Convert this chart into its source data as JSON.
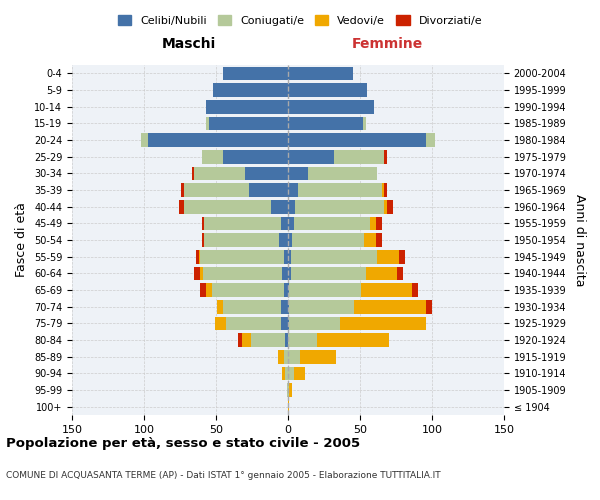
{
  "age_groups": [
    "100+",
    "95-99",
    "90-94",
    "85-89",
    "80-84",
    "75-79",
    "70-74",
    "65-69",
    "60-64",
    "55-59",
    "50-54",
    "45-49",
    "40-44",
    "35-39",
    "30-34",
    "25-29",
    "20-24",
    "15-19",
    "10-14",
    "5-9",
    "0-4"
  ],
  "birth_years": [
    "≤ 1904",
    "1905-1909",
    "1910-1914",
    "1915-1919",
    "1920-1924",
    "1925-1929",
    "1930-1934",
    "1935-1939",
    "1940-1944",
    "1945-1949",
    "1950-1954",
    "1955-1959",
    "1960-1964",
    "1965-1969",
    "1970-1974",
    "1975-1979",
    "1980-1984",
    "1985-1989",
    "1990-1994",
    "1995-1999",
    "2000-2004"
  ],
  "males": {
    "celibe": [
      0,
      0,
      0,
      0,
      2,
      5,
      5,
      3,
      4,
      3,
      6,
      5,
      12,
      27,
      30,
      45,
      97,
      55,
      57,
      52,
      45
    ],
    "coniugato": [
      0,
      1,
      2,
      3,
      24,
      38,
      40,
      50,
      55,
      58,
      52,
      53,
      60,
      45,
      35,
      15,
      5,
      2,
      0,
      0,
      0
    ],
    "vedovo": [
      0,
      0,
      2,
      4,
      6,
      8,
      4,
      4,
      2,
      1,
      0,
      0,
      0,
      0,
      0,
      0,
      0,
      0,
      0,
      0,
      0
    ],
    "divorziato": [
      0,
      0,
      0,
      0,
      3,
      0,
      0,
      4,
      4,
      2,
      2,
      2,
      4,
      2,
      2,
      0,
      0,
      0,
      0,
      0,
      0
    ]
  },
  "females": {
    "nubile": [
      0,
      0,
      0,
      0,
      0,
      1,
      1,
      1,
      2,
      2,
      3,
      4,
      5,
      7,
      14,
      32,
      96,
      52,
      60,
      55,
      45
    ],
    "coniugata": [
      0,
      1,
      4,
      8,
      20,
      35,
      45,
      50,
      52,
      60,
      50,
      53,
      62,
      58,
      48,
      35,
      6,
      2,
      0,
      0,
      0
    ],
    "vedova": [
      1,
      2,
      8,
      25,
      50,
      60,
      50,
      35,
      22,
      15,
      8,
      4,
      2,
      2,
      0,
      0,
      0,
      0,
      0,
      0,
      0
    ],
    "divorziata": [
      0,
      0,
      0,
      0,
      0,
      0,
      4,
      4,
      4,
      4,
      4,
      4,
      4,
      2,
      0,
      2,
      0,
      0,
      0,
      0,
      0
    ]
  },
  "colors": {
    "celibe": "#4472a8",
    "coniugato": "#b5c99a",
    "vedovo": "#f0a800",
    "divorziato": "#cc2200"
  },
  "xlim": 150,
  "title": "Popolazione per età, sesso e stato civile - 2005",
  "subtitle": "COMUNE DI ACQUASANTA TERME (AP) - Dati ISTAT 1° gennaio 2005 - Elaborazione TUTTITALIA.IT",
  "ylabel_left": "Fasce di età",
  "ylabel_right": "Anni di nascita",
  "xlabel_left": "Maschi",
  "xlabel_right": "Femmine"
}
